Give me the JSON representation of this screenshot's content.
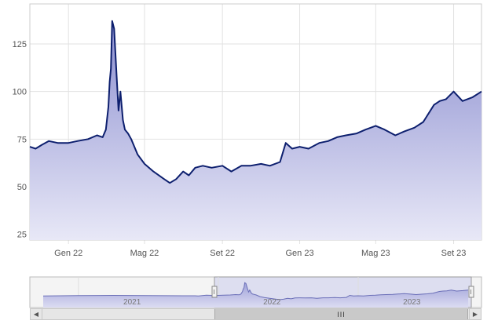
{
  "chart_data": {
    "type": "area",
    "title": "",
    "xlabel": "",
    "ylabel": "",
    "x_ticks": [
      "Gen 22",
      "Mag 22",
      "Set 22",
      "Gen 23",
      "Mag 23",
      "Set 23"
    ],
    "y_ticks": [
      25,
      50,
      75,
      100,
      125
    ],
    "ylim": [
      22,
      146
    ],
    "xlim": [
      "2021-11-01",
      "2023-10-15"
    ],
    "grid": true,
    "colors": {
      "line": "#0d1f6e",
      "fill_top": "#8c8fd0",
      "fill_bottom": "#e8e8f7"
    },
    "series": [
      {
        "x": [
          "2021-11-01",
          "2021-11-10",
          "2021-11-20",
          "2021-12-01",
          "2021-12-15",
          "2022-01-01",
          "2022-01-15",
          "2022-02-01",
          "2022-02-15",
          "2022-02-24",
          "2022-03-01",
          "2022-03-05",
          "2022-03-07",
          "2022-03-09",
          "2022-03-11",
          "2022-03-14",
          "2022-03-18",
          "2022-03-21",
          "2022-03-24",
          "2022-03-28",
          "2022-03-31",
          "2022-04-05",
          "2022-04-10",
          "2022-04-20",
          "2022-05-01",
          "2022-05-15",
          "2022-06-01",
          "2022-06-10",
          "2022-06-20",
          "2022-07-01",
          "2022-07-10",
          "2022-07-20",
          "2022-08-01",
          "2022-08-15",
          "2022-09-01",
          "2022-09-15",
          "2022-10-01",
          "2022-10-15",
          "2022-11-01",
          "2022-11-15",
          "2022-12-01",
          "2022-12-10",
          "2022-12-20",
          "2023-01-01",
          "2023-01-15",
          "2023-02-01",
          "2023-02-15",
          "2023-03-01",
          "2023-03-15",
          "2023-04-01",
          "2023-04-15",
          "2023-05-01",
          "2023-05-15",
          "2023-06-01",
          "2023-06-15",
          "2023-07-01",
          "2023-07-15",
          "2023-08-01",
          "2023-08-10",
          "2023-08-20",
          "2023-09-01",
          "2023-09-15",
          "2023-10-01",
          "2023-10-15"
        ],
        "y": [
          71,
          70,
          72,
          74,
          73,
          73,
          74,
          75,
          77,
          76,
          80,
          92,
          105,
          112,
          137,
          133,
          108,
          90,
          100,
          85,
          80,
          78,
          75,
          67,
          62,
          58,
          54,
          52,
          54,
          58,
          56,
          60,
          61,
          60,
          61,
          58,
          61,
          61,
          62,
          61,
          63,
          73,
          70,
          71,
          70,
          73,
          74,
          76,
          77,
          78,
          80,
          82,
          80,
          77,
          79,
          81,
          84,
          93,
          95,
          96,
          100,
          95,
          97,
          100
        ]
      }
    ]
  },
  "navigator": {
    "labels": [
      "2021",
      "2022",
      "2023"
    ],
    "scroll_thumb_label": "III",
    "scroll_left_icon": "◀",
    "scroll_right_icon": "▶"
  }
}
